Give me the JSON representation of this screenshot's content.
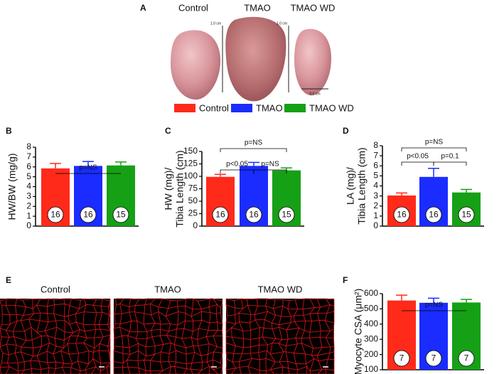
{
  "panel_letters": [
    "A",
    "B",
    "C",
    "D",
    "E",
    "F"
  ],
  "photo_labels": [
    "Control",
    "TMAO",
    "TMAO WD"
  ],
  "scale_labels": [
    "1.0 cm",
    "1.0 cm",
    "0.5 cm"
  ],
  "legend": [
    {
      "name": "Control",
      "color": "#ff2a1a"
    },
    {
      "name": "TMAO",
      "color": "#1a2cff"
    },
    {
      "name": "TMAO WD",
      "color": "#16a016"
    }
  ],
  "micrograph_labels": [
    "Control",
    "TMAO",
    "TMAO WD"
  ],
  "chart_data": [
    {
      "type": "bar",
      "ylabel": [
        "HW/BW (mg/g)"
      ],
      "values": [
        5.85,
        6.1,
        6.15
      ],
      "errors": [
        0.5,
        0.45,
        0.35
      ],
      "n_labels": [
        "16",
        "16",
        "15"
      ],
      "colors": [
        "#ff2a1a",
        "#1a2cff",
        "#16a016"
      ],
      "ylim": [
        0,
        8
      ],
      "yticks": [
        0,
        1,
        2,
        3,
        4,
        5,
        6,
        7,
        8
      ],
      "annotations": [
        "p=NS"
      ]
    },
    {
      "type": "bar",
      "ylabel": [
        "HW (mg)/",
        "Tibia Length (cm)"
      ],
      "values": [
        99,
        121,
        112
      ],
      "errors": [
        5,
        7,
        5
      ],
      "n_labels": [
        "16",
        "16",
        "15"
      ],
      "colors": [
        "#ff2a1a",
        "#1a2cff",
        "#16a016"
      ],
      "ylim": [
        0,
        150
      ],
      "yticks": [
        0,
        25,
        50,
        75,
        100,
        125,
        150
      ],
      "annotations": [
        "p<0.05",
        "p=NS",
        "p=NS"
      ]
    },
    {
      "type": "bar",
      "ylabel": [
        "LA (mg)/",
        "Tibia Length (cm)"
      ],
      "values": [
        3.05,
        4.9,
        3.35
      ],
      "errors": [
        0.25,
        0.85,
        0.3
      ],
      "n_labels": [
        "16",
        "16",
        "15"
      ],
      "colors": [
        "#ff2a1a",
        "#1a2cff",
        "#16a016"
      ],
      "ylim": [
        0,
        8
      ],
      "yticks": [
        0,
        1,
        2,
        3,
        4,
        5,
        6,
        7,
        8
      ],
      "annotations": [
        "p<0.05",
        "p=0.1",
        "p=NS"
      ]
    },
    {
      "type": "bar",
      "ylabel": [
        "Myocyte CSA (μm²)"
      ],
      "values": [
        555,
        540,
        542
      ],
      "errors": [
        35,
        30,
        20
      ],
      "n_labels": [
        "7",
        "7",
        "7"
      ],
      "colors": [
        "#ff2a1a",
        "#1a2cff",
        "#16a016"
      ],
      "ylim": [
        100,
        600
      ],
      "yticks": [
        100,
        200,
        300,
        400,
        500,
        600
      ],
      "annotations": [
        "p=NS"
      ]
    }
  ]
}
